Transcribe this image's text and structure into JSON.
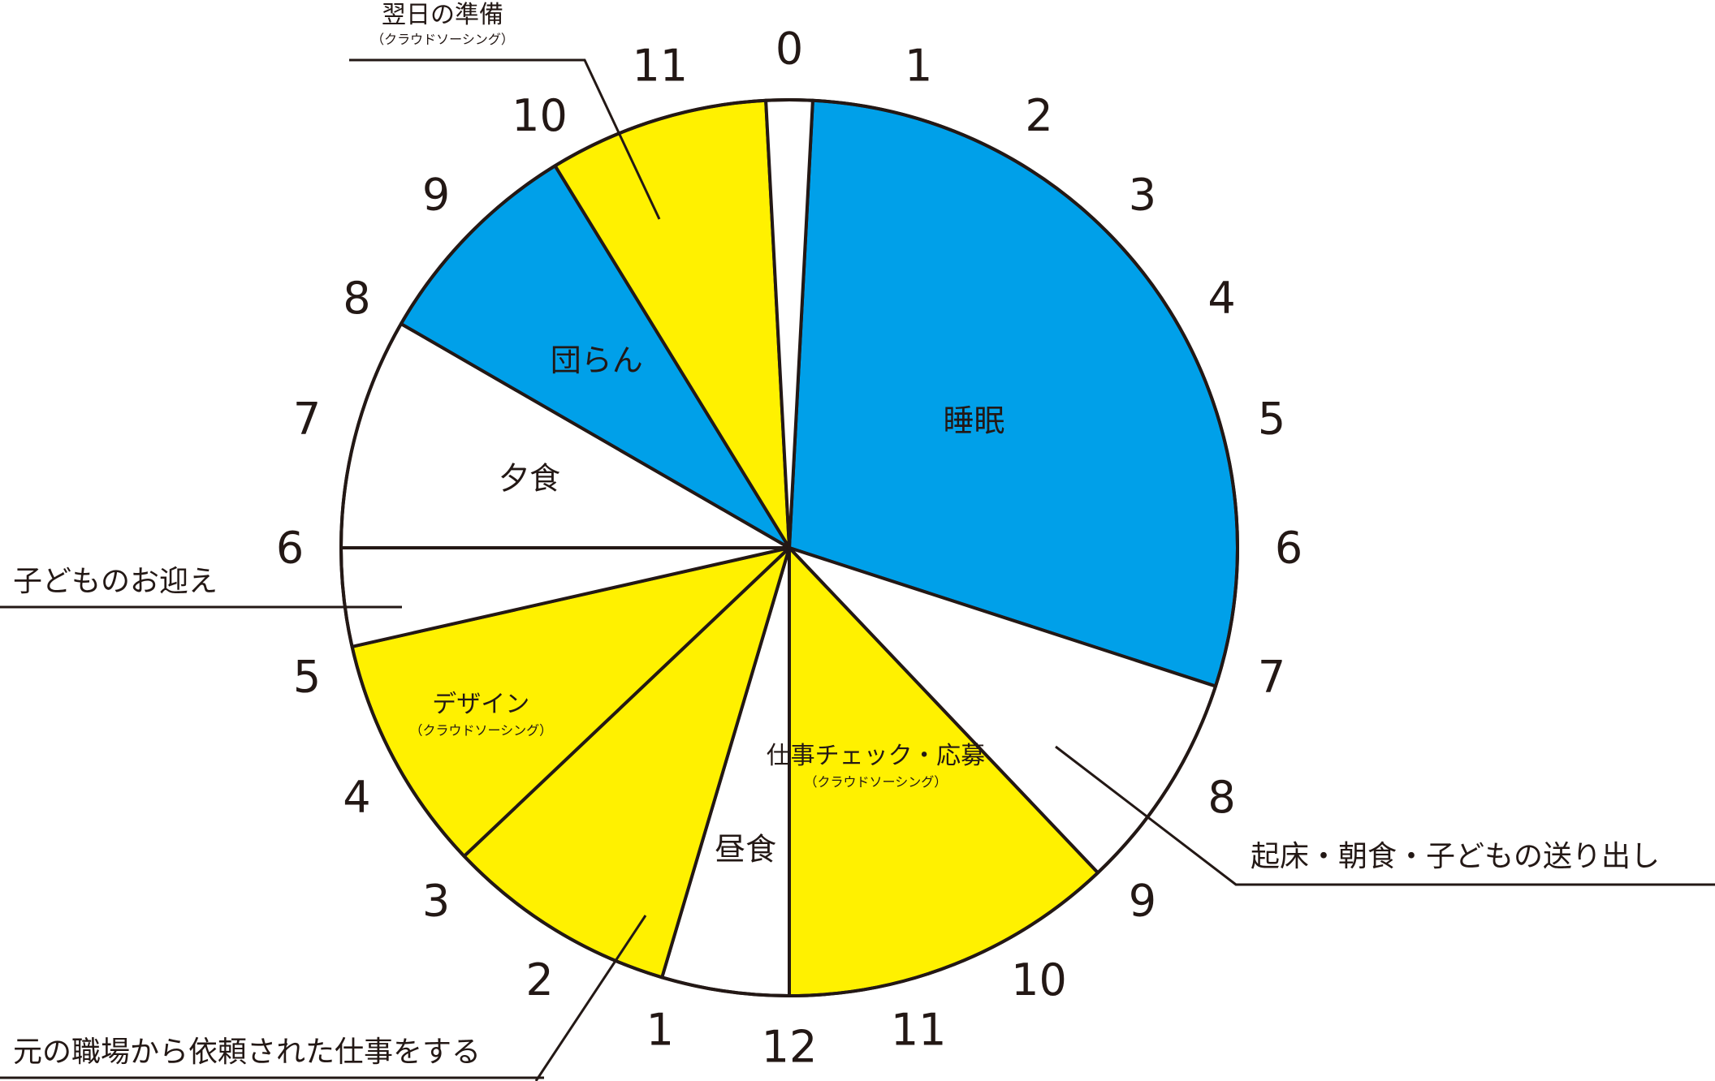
{
  "chart_data": {
    "type": "pie",
    "title": "",
    "unit": "hours",
    "total_hours": 24,
    "start_hour": 0,
    "direction": "clockwise",
    "colors": {
      "sleep": "#00a0e9",
      "crowdsourcing": "#fff100",
      "none": "#ffffff",
      "outline": "#231815"
    },
    "hour_ticks": [
      "0",
      "1",
      "2",
      "3",
      "4",
      "5",
      "6",
      "7",
      "8",
      "9",
      "10",
      "11",
      "12",
      "1",
      "2",
      "3",
      "4",
      "5",
      "6",
      "7",
      "8",
      "9",
      "10",
      "11"
    ],
    "slices": [
      {
        "start": 0.2,
        "end": 7.2,
        "color": "sleep",
        "label": "睡眠",
        "sublabel": ""
      },
      {
        "start": 7.2,
        "end": 9.1,
        "color": "none",
        "label": "",
        "sublabel": ""
      },
      {
        "start": 9.1,
        "end": 12.0,
        "color": "crowdsourcing",
        "label": "仕事チェック・応募",
        "sublabel": "（クラウドソーシング）"
      },
      {
        "start": 12.0,
        "end": 13.1,
        "color": "none",
        "label": "昼食",
        "sublabel": ""
      },
      {
        "start": 13.1,
        "end": 15.1,
        "color": "crowdsourcing",
        "label": "",
        "sublabel": ""
      },
      {
        "start": 15.1,
        "end": 17.15,
        "color": "crowdsourcing",
        "label": "デザイン",
        "sublabel": "（クラウドソーシング）"
      },
      {
        "start": 17.15,
        "end": 18.0,
        "color": "none",
        "label": "",
        "sublabel": ""
      },
      {
        "start": 18.0,
        "end": 20.0,
        "color": "none",
        "label": "夕食",
        "sublabel": ""
      },
      {
        "start": 20.0,
        "end": 21.9,
        "color": "sleep",
        "label": "団らん",
        "sublabel": ""
      },
      {
        "start": 21.9,
        "end": 23.8,
        "color": "crowdsourcing",
        "label": "",
        "sublabel": ""
      },
      {
        "start": 23.8,
        "end": 24.2,
        "color": "none",
        "label": "",
        "sublabel": ""
      }
    ],
    "callouts": [
      {
        "text": "翌日の準備",
        "subtext": "（クラウドソーシング）",
        "side": "top"
      },
      {
        "text": "子どものお迎え",
        "subtext": "",
        "side": "left"
      },
      {
        "text": "起床・朝食・子どもの送り出し",
        "subtext": "",
        "side": "right"
      },
      {
        "text": "元の職場から依頼された仕事をする",
        "subtext": "",
        "side": "bottom-left"
      }
    ]
  }
}
